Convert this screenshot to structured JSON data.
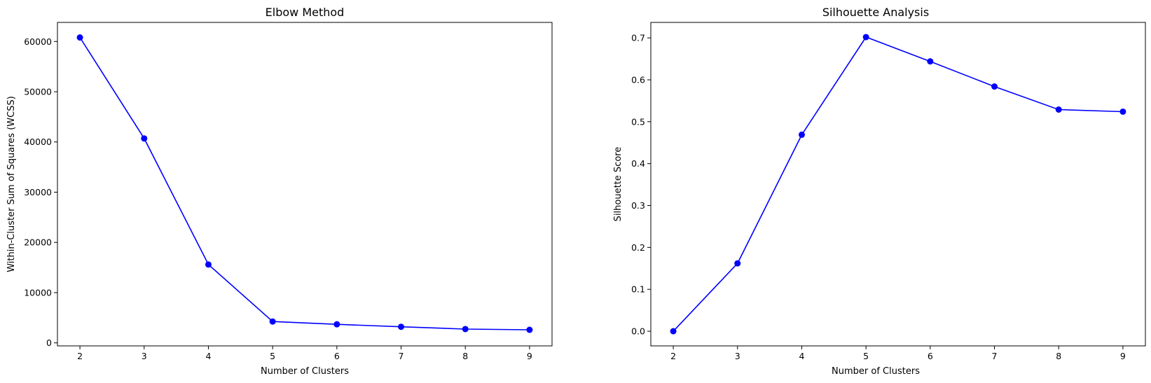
{
  "chart_data": [
    {
      "type": "line",
      "title": "Elbow Method",
      "xlabel": "Number of Clusters",
      "ylabel": "Within-Cluster Sum of Squares (WCSS)",
      "x": [
        2,
        3,
        4,
        5,
        6,
        7,
        8,
        9
      ],
      "xticks": [
        "2",
        "3",
        "4",
        "5",
        "6",
        "7",
        "8",
        "9"
      ],
      "yticks": [
        0,
        10000,
        20000,
        30000,
        40000,
        50000,
        60000
      ],
      "ytick_labels": [
        "0",
        "10000",
        "20000",
        "30000",
        "40000",
        "50000",
        "60000"
      ],
      "xlim": [
        1.65,
        9.35
      ],
      "ylim": [
        -600,
        63800
      ],
      "grid": false,
      "series": [
        {
          "color": "#0000ff",
          "marker": "circle",
          "values": [
            60800,
            40700,
            15600,
            4250,
            3700,
            3200,
            2750,
            2600
          ]
        }
      ]
    },
    {
      "type": "line",
      "title": "Silhouette Analysis",
      "xlabel": "Number of Clusters",
      "ylabel": "Silhouette Score",
      "x": [
        2,
        3,
        4,
        5,
        6,
        7,
        8,
        9
      ],
      "xticks": [
        "2",
        "3",
        "4",
        "5",
        "6",
        "7",
        "8",
        "9"
      ],
      "yticks": [
        0,
        0.1,
        0.2,
        0.3,
        0.4,
        0.5,
        0.6,
        0.7
      ],
      "ytick_labels": [
        "0.0",
        "0.1",
        "0.2",
        "0.3",
        "0.4",
        "0.5",
        "0.6",
        "0.7"
      ],
      "xlim": [
        1.65,
        9.35
      ],
      "ylim": [
        -0.035,
        0.737
      ],
      "grid": false,
      "series": [
        {
          "color": "#0000ff",
          "marker": "circle",
          "values": [
            0.0,
            0.162,
            0.469,
            0.702,
            0.644,
            0.584,
            0.529,
            0.524
          ]
        }
      ]
    }
  ]
}
